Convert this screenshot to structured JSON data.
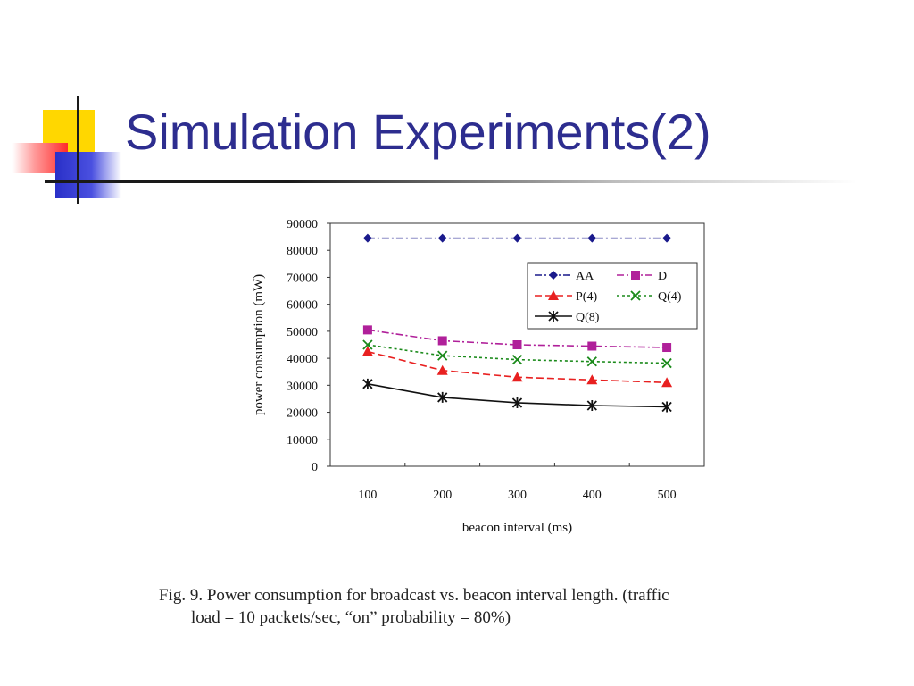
{
  "slide": {
    "title": "Simulation Experiments(2)"
  },
  "caption": {
    "line1": "Fig. 9.   Power consumption for broadcast vs.  beacon interval length.  (traffic",
    "line2": "load = 10 packets/sec, “on” probability = 80%)"
  },
  "chart_data": {
    "type": "line",
    "x": [
      100,
      200,
      300,
      400,
      500
    ],
    "xlabel": "beacon interval (ms)",
    "ylabel": "power consumption (mW)",
    "ylim": [
      0,
      90000
    ],
    "yticks": [
      0,
      10000,
      20000,
      30000,
      40000,
      50000,
      60000,
      70000,
      80000,
      90000
    ],
    "grid": false,
    "legend_position": "top-right",
    "series": [
      {
        "name": "AA",
        "values": [
          84500,
          84500,
          84500,
          84500,
          84500
        ],
        "color": "#1a1a8c",
        "marker": "diamond",
        "dash": "8 3 2 3"
      },
      {
        "name": "D",
        "values": [
          50500,
          46500,
          45000,
          44500,
          44000
        ],
        "color": "#b0209a",
        "marker": "square",
        "dash": "8 3 2 3"
      },
      {
        "name": "P(4)",
        "values": [
          42500,
          35500,
          33000,
          32000,
          31000
        ],
        "color": "#e82020",
        "marker": "triangle",
        "dash": "8 4"
      },
      {
        "name": "Q(4)",
        "values": [
          45000,
          41000,
          39500,
          38800,
          38200
        ],
        "color": "#1a8a1a",
        "marker": "x",
        "dash": "3 3"
      },
      {
        "name": "Q(8)",
        "values": [
          30500,
          25500,
          23500,
          22500,
          22000
        ],
        "color": "#111111",
        "marker": "star",
        "dash": ""
      }
    ]
  }
}
